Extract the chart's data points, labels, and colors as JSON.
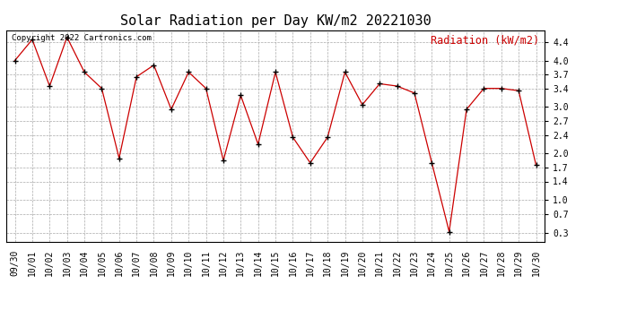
{
  "title": "Solar Radiation per Day KW/m2 20221030",
  "copyright_text": "Copyright 2022 Cartronics.com",
  "legend_label": "Radiation (kW/m2)",
  "line_color": "#cc0000",
  "marker_color": "#000000",
  "background_color": "#ffffff",
  "grid_color": "#aaaaaa",
  "dates": [
    "09/30",
    "10/01",
    "10/02",
    "10/03",
    "10/04",
    "10/05",
    "10/06",
    "10/07",
    "10/08",
    "10/09",
    "10/10",
    "10/11",
    "10/12",
    "10/13",
    "10/14",
    "10/15",
    "10/16",
    "10/17",
    "10/18",
    "10/19",
    "10/20",
    "10/21",
    "10/22",
    "10/23",
    "10/24",
    "10/25",
    "10/26",
    "10/27",
    "10/28",
    "10/29",
    "10/30"
  ],
  "values": [
    4.0,
    4.45,
    3.45,
    4.5,
    3.75,
    3.4,
    1.9,
    3.65,
    3.9,
    2.95,
    3.75,
    3.4,
    1.85,
    3.25,
    2.2,
    3.75,
    2.35,
    1.8,
    2.35,
    3.75,
    3.05,
    3.5,
    3.45,
    3.3,
    1.8,
    0.32,
    2.95,
    3.4,
    3.4,
    3.35,
    1.75
  ],
  "yticks": [
    0.3,
    0.7,
    1.0,
    1.4,
    1.7,
    2.0,
    2.4,
    2.7,
    3.0,
    3.4,
    3.7,
    4.0,
    4.4
  ],
  "ylim": [
    0.1,
    4.65
  ],
  "title_fontsize": 11,
  "copyright_fontsize": 6.5,
  "legend_fontsize": 8.5,
  "tick_fontsize": 7
}
